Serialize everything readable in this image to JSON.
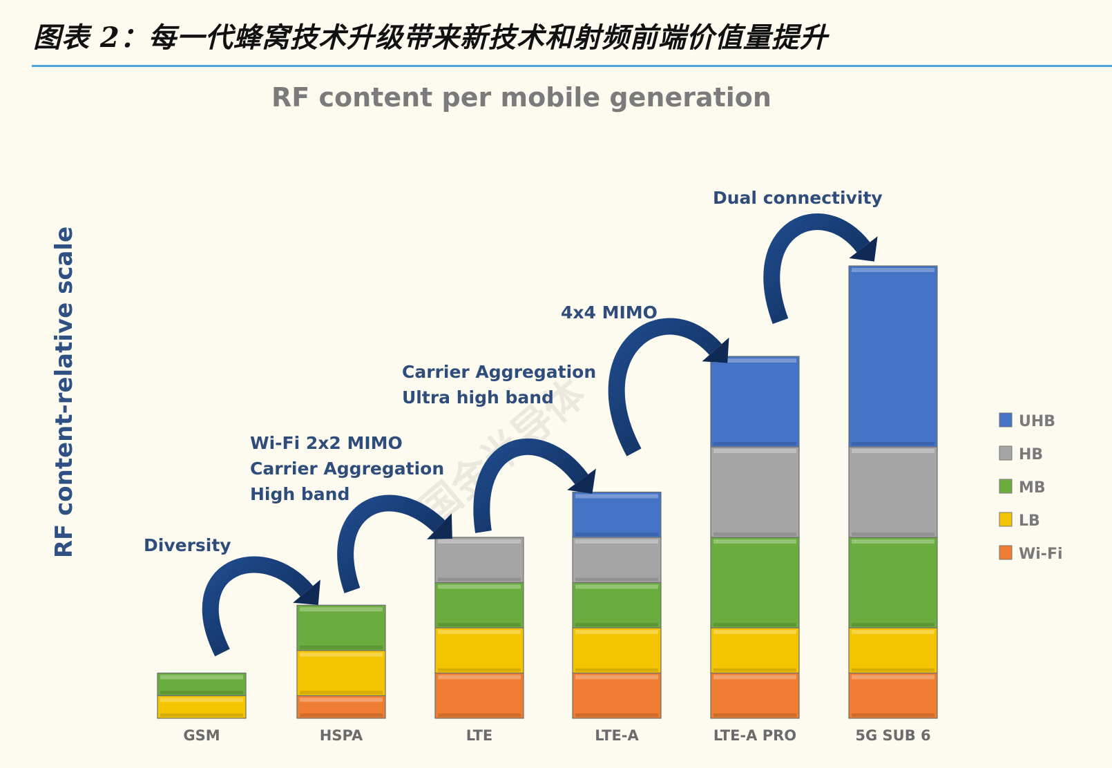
{
  "figure_title": "图表 2：每一代蜂窝技术升级带来新技术和射频前端价值量提升",
  "watermark": "国金半导体",
  "chart_data": {
    "type": "bar",
    "stacked": true,
    "title": "RF content per mobile generation",
    "xlabel": "",
    "ylabel": "RF content-relative scale",
    "y_ticks_shown": false,
    "grid": false,
    "legend_position": "right",
    "categories": [
      "GSM",
      "HSPA",
      "LTE",
      "LTE-A",
      "LTE-A PRO",
      "5G SUB 6"
    ],
    "series": [
      {
        "name": "Wi-Fi",
        "color": "#ee7d31",
        "values": [
          0,
          0.5,
          1,
          1,
          1,
          1
        ]
      },
      {
        "name": "LB",
        "color": "#f5c400",
        "values": [
          0.5,
          1,
          1,
          1,
          1,
          1
        ]
      },
      {
        "name": "MB",
        "color": "#6aac3d",
        "values": [
          0.5,
          1,
          1,
          1,
          2,
          2
        ]
      },
      {
        "name": "HB",
        "color": "#a5a5a5",
        "values": [
          0,
          0,
          1,
          1,
          2,
          2
        ]
      },
      {
        "name": "UHB",
        "color": "#4472c4",
        "values": [
          0,
          0,
          0,
          1,
          2,
          4
        ]
      }
    ],
    "annotations": [
      {
        "lines": [
          "Diversity"
        ]
      },
      {
        "lines": [
          "Wi-Fi 2x2 MIMO",
          "Carrier Aggregation",
          "High band"
        ]
      },
      {
        "lines": [
          "Carrier Aggregation",
          "Ultra high band"
        ]
      },
      {
        "lines": [
          "4x4 MIMO"
        ]
      },
      {
        "lines": [
          "Dual connectivity"
        ]
      }
    ],
    "legend_order": [
      "UHB",
      "HB",
      "MB",
      "LB",
      "Wi-Fi"
    ]
  }
}
